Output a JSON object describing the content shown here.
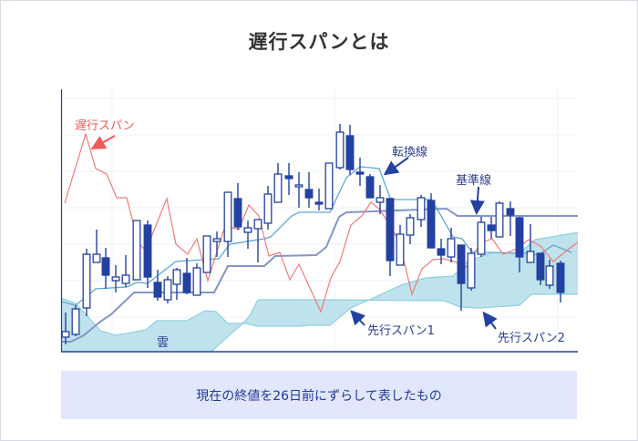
{
  "title": "遅行スパンとは",
  "labels": {
    "chikou": "遅行スパン",
    "tenkan": "転換線",
    "kijun": "基準線",
    "senkou1": "先行スパン1",
    "senkou2": "先行スパン2",
    "cloud": "雲"
  },
  "note": "現在の終値を26日前にずらして表したもの",
  "colors": {
    "chikou": "#f07a7a",
    "tenkan": "#5fa6d6",
    "kijun": "#8595c8",
    "senkou": "#8fd0df",
    "cloud": "#bfe3ec",
    "candle": "#2341a0",
    "label": "#2a3f8f",
    "note_bg": "#e1e7fc"
  }
}
